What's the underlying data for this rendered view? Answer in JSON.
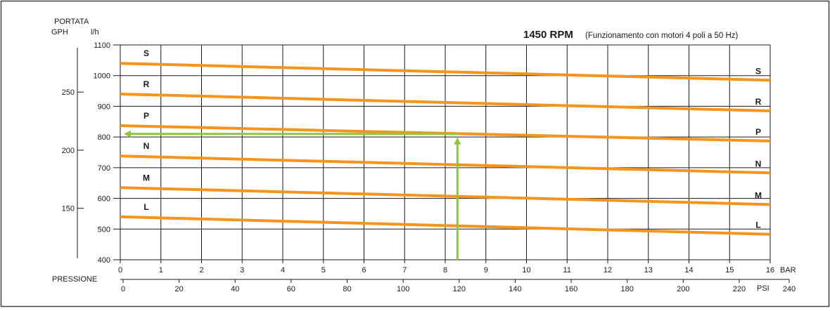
{
  "chart_data": {
    "type": "line",
    "title_rpm": "1450 RPM",
    "title_note": "(Funzionamento con motori 4 poli a 50 Hz)",
    "left_axis": {
      "title_line1": "PORTATA",
      "gph_label": "GPH",
      "lh_label": "l/h",
      "lh_ticks": [
        "1100",
        "1000",
        "900",
        "800",
        "700",
        "600",
        "500",
        "400"
      ],
      "lh_values": [
        1100,
        1000,
        900,
        800,
        700,
        600,
        500,
        400
      ],
      "gph_ticks": [
        "250",
        "200",
        "150"
      ],
      "gph_lh_equivalent": [
        946.35,
        757.08,
        567.81
      ],
      "ylim": [
        400,
        1100
      ]
    },
    "bottom_axis": {
      "title": "PRESSIONE",
      "bar_unit": "BAR",
      "bar_ticks": [
        "0",
        "1",
        "2",
        "3",
        "4",
        "5",
        "6",
        "7",
        "8",
        "9",
        "10",
        "11",
        "12",
        "13",
        "14",
        "15",
        "16"
      ],
      "bar_values": [
        0,
        1,
        2,
        3,
        4,
        5,
        6,
        7,
        8,
        9,
        10,
        11,
        12,
        13,
        14,
        15,
        16
      ],
      "psi_unit": "PSI",
      "psi_ticks": [
        "0",
        "20",
        "40",
        "60",
        "80",
        "100",
        "120",
        "140",
        "160",
        "180",
        "200",
        "220",
        "240"
      ],
      "psi_values": [
        0,
        20,
        40,
        60,
        80,
        100,
        120,
        140,
        160,
        180,
        200,
        220,
        240
      ],
      "xlim": [
        0,
        16
      ]
    },
    "series": [
      {
        "name": "S",
        "x": [
          0,
          16
        ],
        "y": [
          1040,
          985
        ]
      },
      {
        "name": "R",
        "x": [
          0,
          16
        ],
        "y": [
          940,
          885
        ]
      },
      {
        "name": "P",
        "x": [
          0,
          16
        ],
        "y": [
          837,
          787
        ]
      },
      {
        "name": "N",
        "x": [
          0,
          16
        ],
        "y": [
          738,
          683
        ]
      },
      {
        "name": "M",
        "x": [
          0,
          16
        ],
        "y": [
          635,
          580
        ]
      },
      {
        "name": "L",
        "x": [
          0,
          16
        ],
        "y": [
          540,
          483
        ]
      }
    ],
    "annotation": {
      "pressure_bar": 8.3,
      "flow_lh": 810
    },
    "grid": true,
    "colors": {
      "curve": "#f7941d",
      "annotation": "#8dc63f",
      "grid": "#1a1a1a",
      "frame": "#444444"
    }
  }
}
